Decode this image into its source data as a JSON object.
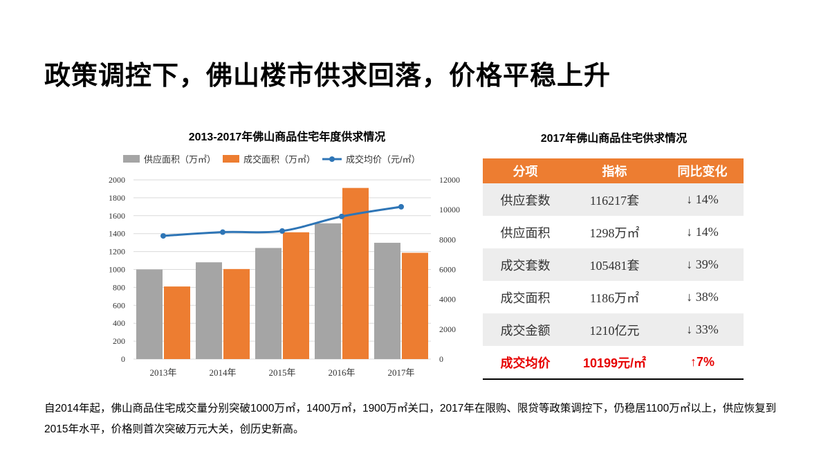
{
  "title": "政策调控下，佛山楼市供求回落，价格平稳上升",
  "chart_data": {
    "type": "bar",
    "title": "2013-2017年佛山商品住宅年度供求情况",
    "categories": [
      "2013年",
      "2014年",
      "2015年",
      "2016年",
      "2017年"
    ],
    "series": [
      {
        "name": "供应面积（万㎡）",
        "type": "bar",
        "axis": "left",
        "color": "#a5a5a5",
        "values": [
          1000,
          1080,
          1240,
          1515,
          1298
        ]
      },
      {
        "name": "成交面积（万㎡）",
        "type": "bar",
        "axis": "left",
        "color": "#ed7d31",
        "values": [
          810,
          1005,
          1415,
          1910,
          1186
        ]
      },
      {
        "name": "成交均价（元/㎡）",
        "type": "line",
        "axis": "right",
        "color": "#2e75b6",
        "values": [
          8250,
          8500,
          8580,
          9550,
          10199
        ]
      }
    ],
    "ylim_left": [
      0,
      2000
    ],
    "yticks_left": [
      "0",
      "200",
      "400",
      "600",
      "800",
      "1000",
      "1200",
      "1400",
      "1600",
      "1800",
      "2000"
    ],
    "ylim_right": [
      0,
      12000
    ],
    "yticks_right": [
      "0",
      "2000",
      "4000",
      "6000",
      "8000",
      "10000",
      "12000"
    ],
    "grid": true,
    "legend_position": "top"
  },
  "table": {
    "title": "2017年佛山商品住宅供求情况",
    "headers": [
      "分项",
      "指标",
      "同比变化"
    ],
    "rows": [
      [
        "供应套数",
        "116217套",
        "↓ 14%"
      ],
      [
        "供应面积",
        "1298万㎡",
        "↓ 14%"
      ],
      [
        "成交套数",
        "105481套",
        "↓ 39%"
      ],
      [
        "成交面积",
        "1186万㎡",
        "↓ 38%"
      ],
      [
        "成交金额",
        "1210亿元",
        "↓ 33%"
      ],
      [
        "成交均价",
        "10199元/㎡",
        "↑7%"
      ]
    ]
  },
  "note": "自2014年起，佛山商品住宅成交量分别突破1000万㎡，1400万㎡，1900万㎡关口，2017年在限购、限贷等政策调控下，仍稳居1100万㎡以上，供应恢复到2015年水平，价格则首次突破万元大关，创历史新高。",
  "colors": {
    "accent": "#ed7d31",
    "grey": "#a5a5a5",
    "line": "#2e75b6",
    "highlight": "#e60000"
  }
}
